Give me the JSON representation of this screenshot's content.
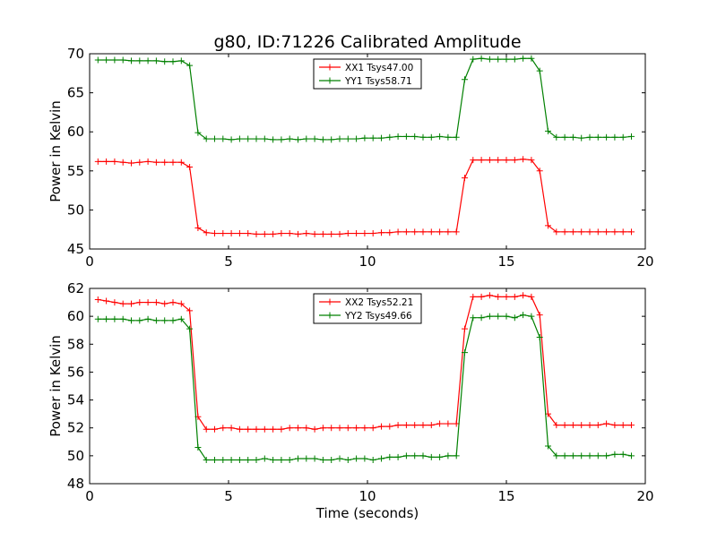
{
  "title": "g80, ID:71226 Calibrated Amplitude",
  "chart_data": [
    {
      "type": "line",
      "ylabel": "Power in Kelvin",
      "xlabel": "",
      "xlim": [
        0,
        20
      ],
      "ylim": [
        45,
        70
      ],
      "xticks": [
        0,
        5,
        10,
        15,
        20
      ],
      "yticks": [
        45,
        50,
        55,
        60,
        65,
        70
      ],
      "legend_position": "top-center",
      "x": [
        0.3,
        0.6,
        0.9,
        1.2,
        1.5,
        1.8,
        2.1,
        2.4,
        2.7,
        3.0,
        3.3,
        3.6,
        3.9,
        4.2,
        4.5,
        4.8,
        5.1,
        5.4,
        5.7,
        6.0,
        6.3,
        6.6,
        6.9,
        7.2,
        7.5,
        7.8,
        8.1,
        8.4,
        8.7,
        9.0,
        9.3,
        9.6,
        9.9,
        10.2,
        10.5,
        10.8,
        11.1,
        11.4,
        11.7,
        12.0,
        12.3,
        12.6,
        12.9,
        13.2,
        13.5,
        13.8,
        14.1,
        14.4,
        14.7,
        15.0,
        15.3,
        15.6,
        15.9,
        16.2,
        16.5,
        16.8,
        17.1,
        17.4,
        17.7,
        18.0,
        18.3,
        18.6,
        18.9,
        19.2,
        19.5
      ],
      "series": [
        {
          "name": "XX1 Tsys47.00",
          "color": "#ff0000",
          "values": [
            56.2,
            56.2,
            56.2,
            56.1,
            56.0,
            56.1,
            56.2,
            56.1,
            56.1,
            56.1,
            56.1,
            55.5,
            47.7,
            47.1,
            47.0,
            47.0,
            47.0,
            47.0,
            47.0,
            46.9,
            46.9,
            46.9,
            47.0,
            47.0,
            46.9,
            47.0,
            46.9,
            46.9,
            46.9,
            46.9,
            47.0,
            47.0,
            47.0,
            47.0,
            47.1,
            47.1,
            47.2,
            47.2,
            47.2,
            47.2,
            47.2,
            47.2,
            47.2,
            47.2,
            54.1,
            56.4,
            56.4,
            56.4,
            56.4,
            56.4,
            56.4,
            56.5,
            56.4,
            55.0,
            48.0,
            47.2,
            47.2,
            47.2,
            47.2,
            47.2,
            47.2,
            47.2,
            47.2,
            47.2,
            47.2
          ]
        },
        {
          "name": "YY1 Tsys58.71",
          "color": "#008000",
          "values": [
            69.2,
            69.2,
            69.2,
            69.2,
            69.1,
            69.1,
            69.1,
            69.1,
            69.0,
            69.0,
            69.1,
            68.5,
            59.9,
            59.1,
            59.1,
            59.1,
            59.0,
            59.1,
            59.1,
            59.1,
            59.1,
            59.0,
            59.0,
            59.1,
            59.0,
            59.1,
            59.1,
            59.0,
            59.0,
            59.1,
            59.1,
            59.1,
            59.2,
            59.2,
            59.2,
            59.3,
            59.4,
            59.4,
            59.4,
            59.3,
            59.3,
            59.4,
            59.3,
            59.3,
            66.7,
            69.3,
            69.4,
            69.3,
            69.3,
            69.3,
            69.3,
            69.4,
            69.4,
            67.8,
            60.1,
            59.3,
            59.3,
            59.3,
            59.2,
            59.3,
            59.3,
            59.3,
            59.3,
            59.3,
            59.4
          ]
        }
      ]
    },
    {
      "type": "line",
      "ylabel": "Power in Kelvin",
      "xlabel": "Time (seconds)",
      "xlim": [
        0,
        20
      ],
      "ylim": [
        48,
        62
      ],
      "xticks": [
        0,
        5,
        10,
        15,
        20
      ],
      "yticks": [
        48,
        50,
        52,
        54,
        56,
        58,
        60,
        62
      ],
      "legend_position": "top-center",
      "x": [
        0.3,
        0.6,
        0.9,
        1.2,
        1.5,
        1.8,
        2.1,
        2.4,
        2.7,
        3.0,
        3.3,
        3.6,
        3.9,
        4.2,
        4.5,
        4.8,
        5.1,
        5.4,
        5.7,
        6.0,
        6.3,
        6.6,
        6.9,
        7.2,
        7.5,
        7.8,
        8.1,
        8.4,
        8.7,
        9.0,
        9.3,
        9.6,
        9.9,
        10.2,
        10.5,
        10.8,
        11.1,
        11.4,
        11.7,
        12.0,
        12.3,
        12.6,
        12.9,
        13.2,
        13.5,
        13.8,
        14.1,
        14.4,
        14.7,
        15.0,
        15.3,
        15.6,
        15.9,
        16.2,
        16.5,
        16.8,
        17.1,
        17.4,
        17.7,
        18.0,
        18.3,
        18.6,
        18.9,
        19.2,
        19.5
      ],
      "series": [
        {
          "name": "XX2 Tsys52.21",
          "color": "#ff0000",
          "values": [
            61.2,
            61.1,
            61.0,
            60.9,
            60.9,
            61.0,
            61.0,
            61.0,
            60.9,
            61.0,
            60.9,
            60.4,
            52.8,
            51.9,
            51.9,
            52.0,
            52.0,
            51.9,
            51.9,
            51.9,
            51.9,
            51.9,
            51.9,
            52.0,
            52.0,
            52.0,
            51.9,
            52.0,
            52.0,
            52.0,
            52.0,
            52.0,
            52.0,
            52.0,
            52.1,
            52.1,
            52.2,
            52.2,
            52.2,
            52.2,
            52.2,
            52.3,
            52.3,
            52.3,
            59.1,
            61.4,
            61.4,
            61.5,
            61.4,
            61.4,
            61.4,
            61.5,
            61.4,
            60.1,
            53.0,
            52.2,
            52.2,
            52.2,
            52.2,
            52.2,
            52.2,
            52.3,
            52.2,
            52.2,
            52.2
          ]
        },
        {
          "name": "YY2 Tsys49.66",
          "color": "#008000",
          "values": [
            59.8,
            59.8,
            59.8,
            59.8,
            59.7,
            59.7,
            59.8,
            59.7,
            59.7,
            59.7,
            59.8,
            59.1,
            50.6,
            49.7,
            49.7,
            49.7,
            49.7,
            49.7,
            49.7,
            49.7,
            49.8,
            49.7,
            49.7,
            49.7,
            49.8,
            49.8,
            49.8,
            49.7,
            49.7,
            49.8,
            49.7,
            49.8,
            49.8,
            49.7,
            49.8,
            49.9,
            49.9,
            50.0,
            50.0,
            50.0,
            49.9,
            49.9,
            50.0,
            50.0,
            57.4,
            59.9,
            59.9,
            60.0,
            60.0,
            60.0,
            59.9,
            60.1,
            60.0,
            58.5,
            50.7,
            50.0,
            50.0,
            50.0,
            50.0,
            50.0,
            50.0,
            50.0,
            50.1,
            50.1,
            50.0
          ]
        }
      ]
    }
  ]
}
